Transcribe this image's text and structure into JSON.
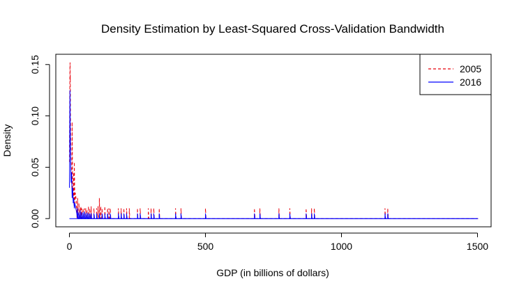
{
  "chart_data": {
    "type": "line",
    "title": "Density Estimation by Least-Squared Cross-Validation Bandwidth",
    "xlabel": "GDP (in billions of dollars)",
    "ylabel": "Density",
    "xlim": [
      -50,
      1550
    ],
    "ylim": [
      -0.008,
      0.16
    ],
    "xticks": [
      0,
      500,
      1000,
      1500
    ],
    "xtick_labels": [
      "0",
      "500",
      "1000",
      "1500"
    ],
    "yticks": [
      0.0,
      0.05,
      0.1,
      0.15
    ],
    "ytick_labels": [
      "0.00",
      "0.05",
      "0.10",
      "0.15"
    ],
    "grid": false,
    "legend_position": "top-right",
    "series": [
      {
        "name": "2005",
        "color": "#e8000b",
        "line_style": "dashed",
        "x": [
          0,
          1,
          1.5,
          2,
          2.5,
          3,
          3.2,
          3.5,
          4,
          4.5,
          5,
          6,
          7,
          8,
          9,
          10,
          12,
          14,
          15,
          17,
          18,
          20,
          22,
          25,
          28,
          30,
          35,
          40,
          42,
          45,
          50,
          55,
          60,
          65,
          70,
          75,
          80,
          90,
          100,
          105,
          110,
          115,
          120,
          130,
          140,
          145,
          150,
          180,
          190,
          200,
          210,
          220,
          250,
          260,
          290,
          300,
          310,
          330,
          390,
          410,
          500,
          680,
          700,
          770,
          810,
          870,
          890,
          900,
          1160,
          1170,
          1500
        ],
        "y": [
          0.055,
          0.095,
          0.125,
          0.148,
          0.152,
          0.135,
          0.14,
          0.12,
          0.095,
          0.08,
          0.07,
          0.045,
          0.035,
          0.04,
          0.03,
          0.094,
          0.025,
          0.02,
          0.045,
          0.012,
          0.055,
          0.015,
          0.025,
          0.018,
          0.01,
          0.02,
          0.015,
          0.01,
          0.012,
          0.01,
          0.01,
          0.01,
          0.01,
          0.008,
          0.012,
          0.01,
          0.012,
          0.01,
          0.01,
          0.012,
          0.02,
          0.012,
          0.01,
          0.012,
          0.01,
          0.01,
          0.01,
          0.01,
          0.01,
          0.01,
          0.01,
          0.01,
          0.01,
          0.01,
          0.01,
          0.01,
          0.01,
          0.01,
          0.01,
          0.01,
          0.01,
          0.01,
          0.01,
          0.01,
          0.01,
          0.01,
          0.01,
          0.01,
          0.01,
          0.01,
          0.0
        ]
      },
      {
        "name": "2016",
        "color": "#0000ff",
        "line_style": "solid",
        "x": [
          0,
          1,
          1.5,
          2,
          2.5,
          3,
          4,
          5,
          6,
          8,
          10,
          12,
          14,
          16,
          18,
          20,
          22,
          25,
          30,
          35,
          40,
          45,
          50,
          55,
          60,
          65,
          70,
          75,
          80,
          90,
          100,
          110,
          120,
          130,
          140,
          150,
          180,
          190,
          200,
          210,
          250,
          260,
          300,
          310,
          330,
          390,
          410,
          500,
          680,
          700,
          770,
          810,
          870,
          890,
          900,
          1160,
          1170,
          1500
        ],
        "y": [
          0.03,
          0.06,
          0.1,
          0.125,
          0.115,
          0.09,
          0.07,
          0.05,
          0.035,
          0.045,
          0.02,
          0.03,
          0.015,
          0.02,
          0.01,
          0.015,
          0.012,
          0.008,
          0.01,
          0.006,
          0.008,
          0.006,
          0.006,
          0.007,
          0.005,
          0.006,
          0.005,
          0.005,
          0.005,
          0.005,
          0.005,
          0.005,
          0.005,
          0.005,
          0.005,
          0.005,
          0.005,
          0.005,
          0.005,
          0.005,
          0.005,
          0.005,
          0.005,
          0.005,
          0.005,
          0.005,
          0.005,
          0.005,
          0.005,
          0.005,
          0.005,
          0.005,
          0.005,
          0.005,
          0.005,
          0.005,
          0.005,
          0.0
        ]
      }
    ]
  }
}
